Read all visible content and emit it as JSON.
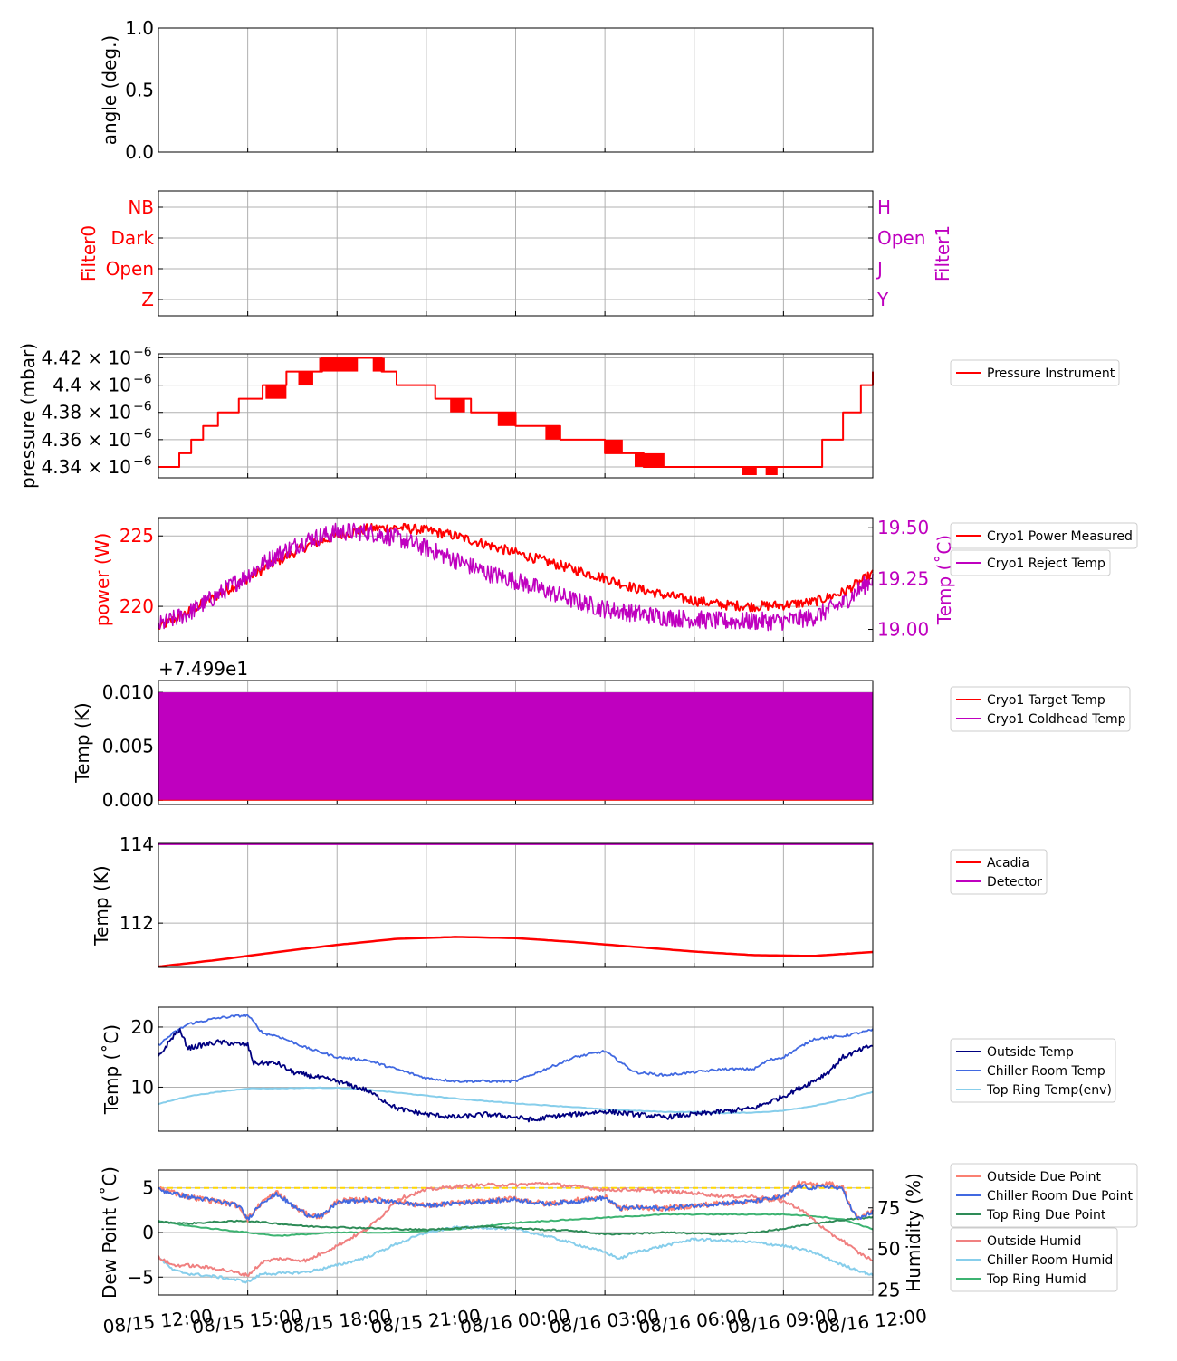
{
  "colors": {
    "red": "#ff0000",
    "magenta": "#bf00bf",
    "navy": "#000080",
    "royalblue": "#4169e1",
    "skyblue": "#87ceeb",
    "seagreen": "#2e8b57",
    "salmon": "#fa8072",
    "lightcoral": "#f08080",
    "mediumseagreen": "#3cb371",
    "gold": "#ffd700",
    "grid": "#b0b0b0"
  },
  "x_ticks": [
    "08/15 12:00",
    "08/15 15:00",
    "08/15 18:00",
    "08/15 21:00",
    "08/16 00:00",
    "08/16 03:00",
    "08/16 06:00",
    "08/16 09:00",
    "08/16 12:00"
  ],
  "x_range": [
    "08/15 12:00",
    "08/16 12:00"
  ],
  "chart_data": [
    {
      "type": "line",
      "panel": "angle",
      "ylabel": "angle (deg.)",
      "ylim": [
        0,
        1
      ],
      "yticks": [
        "0.0",
        "0.5",
        "1.0"
      ],
      "grid": true,
      "series": []
    },
    {
      "type": "line",
      "panel": "filters",
      "ylabel": "Filter0",
      "ylabel_right": "Filter1",
      "yticks_left": [
        "Z",
        "Open",
        "Dark",
        "NB"
      ],
      "yticks_right": [
        "Y",
        "J",
        "Open",
        "H"
      ],
      "grid": true,
      "series": []
    },
    {
      "type": "line",
      "panel": "pressure",
      "ylabel": "pressure (mbar)",
      "ylim": [
        4.332e-06,
        4.423e-06
      ],
      "yticks": [
        {
          "mant": "4.34",
          "exp": "−6"
        },
        {
          "mant": "4.36",
          "exp": "−6"
        },
        {
          "mant": "4.38",
          "exp": "−6"
        },
        {
          "mant": "4.4",
          "exp": "−6"
        },
        {
          "mant": "4.42",
          "exp": "−6"
        }
      ],
      "legend": [
        "Pressure Instrument"
      ],
      "legend_position": "outside-right",
      "grid": true,
      "series": [
        {
          "name": "Pressure Instrument",
          "x_hours": [
            0,
            0.7,
            1.1,
            1.5,
            2.0,
            2.7,
            3.5,
            4.3,
            5.5,
            6.7,
            7.5,
            8.0,
            9.3,
            10.5,
            12,
            13.5,
            15,
            16.3,
            18,
            19.5,
            21.3,
            22.3,
            23,
            23.6,
            24
          ],
          "values": [
            4.34e-06,
            4.35e-06,
            4.36e-06,
            4.37e-06,
            4.38e-06,
            4.39e-06,
            4.4e-06,
            4.41e-06,
            4.42e-06,
            4.42e-06,
            4.41e-06,
            4.4e-06,
            4.39e-06,
            4.38e-06,
            4.37e-06,
            4.36e-06,
            4.35e-06,
            4.34e-06,
            4.34e-06,
            4.34e-06,
            4.34e-06,
            4.36e-06,
            4.38e-06,
            4.4e-06,
            4.41e-06
          ]
        }
      ]
    },
    {
      "type": "line",
      "panel": "cryo-power",
      "ylabel": "power (W)",
      "ylabel_right": "Temp (˚C)",
      "ylim": [
        217.5,
        226.3
      ],
      "ylim_right": [
        18.94,
        19.55
      ],
      "yticks": [
        "220",
        "225"
      ],
      "yticks_right": [
        "19.00",
        "19.25",
        "19.50"
      ],
      "legend": [
        "Cryo1 Power Measured",
        "Cryo1 Reject Temp"
      ],
      "legend_position": "outside-right",
      "grid": true,
      "series": [
        {
          "name": "Cryo1 Power Measured",
          "axis": "left",
          "x_hours": [
            0,
            1,
            2,
            3,
            4,
            5,
            6,
            7,
            8,
            9,
            10,
            11,
            12,
            13,
            14,
            15,
            16,
            17,
            18,
            19,
            20,
            21,
            22,
            23,
            24
          ],
          "values": [
            218.5,
            219.6,
            220.8,
            222.0,
            223.2,
            224.3,
            225.0,
            225.5,
            225.6,
            225.4,
            225.0,
            224.4,
            223.8,
            223.2,
            222.6,
            222.0,
            221.3,
            220.8,
            220.4,
            220.1,
            220.0,
            220.1,
            220.3,
            221.0,
            222.3
          ]
        },
        {
          "name": "Cryo1 Reject Temp",
          "axis": "right",
          "x_hours": [
            0,
            1,
            2,
            3,
            4,
            5,
            6,
            7,
            8,
            9,
            10,
            11,
            12,
            13,
            14,
            15,
            16,
            17,
            18,
            19,
            20,
            21,
            22,
            23,
            24
          ],
          "values": [
            19.02,
            19.08,
            19.17,
            19.27,
            19.37,
            19.44,
            19.48,
            19.48,
            19.45,
            19.4,
            19.34,
            19.28,
            19.24,
            19.19,
            19.14,
            19.1,
            19.08,
            19.06,
            19.05,
            19.04,
            19.04,
            19.04,
            19.06,
            19.13,
            19.25
          ]
        }
      ]
    },
    {
      "type": "line",
      "panel": "cryo-coldhead",
      "ylabel": "Temp (K)",
      "offset_text": "+7.499e1",
      "ylim": [
        -0.0004,
        0.0111
      ],
      "yticks": [
        "0.000",
        "0.005",
        "0.010"
      ],
      "legend": [
        "Cryo1 Target Temp",
        "Cryo1 Coldhead Temp"
      ],
      "legend_position": "outside-right",
      "grid": true,
      "series": [
        {
          "name": "Cryo1 Target Temp",
          "x_hours": [
            0,
            24
          ],
          "values": [
            0.0,
            0.0
          ]
        },
        {
          "name": "Cryo1 Coldhead Temp",
          "x_hours": [
            0,
            24
          ],
          "values_min": [
            0.0,
            0.0
          ],
          "values_max": [
            0.01,
            0.01
          ]
        }
      ]
    },
    {
      "type": "line",
      "panel": "detector",
      "ylabel": "Temp (K)",
      "ylim": [
        110.88,
        114.02
      ],
      "yticks": [
        "112",
        "114"
      ],
      "legend": [
        "Acadia",
        "Detector"
      ],
      "legend_position": "outside-right",
      "grid": true,
      "series": [
        {
          "name": "Acadia",
          "x_hours": [
            0,
            2,
            4,
            6,
            8,
            10,
            12,
            14,
            16,
            18,
            20,
            22,
            24
          ],
          "values": [
            110.9,
            111.07,
            111.27,
            111.45,
            111.6,
            111.65,
            111.62,
            111.52,
            111.4,
            111.28,
            111.19,
            111.17,
            111.27
          ]
        },
        {
          "name": "Detector",
          "x_hours": [
            0,
            24
          ],
          "values": [
            114.0,
            114.0
          ]
        }
      ]
    },
    {
      "type": "line",
      "panel": "weather-temp",
      "ylabel": "Temp (˚C)",
      "ylim": [
        2.7,
        23.3
      ],
      "yticks": [
        "10",
        "20"
      ],
      "legend": [
        "Outside Temp",
        "Chiller Room Temp",
        "Top Ring Temp(env)"
      ],
      "legend_position": "outside-right",
      "grid": true,
      "series": [
        {
          "name": "Outside Temp",
          "x_hours": [
            0,
            0.5,
            0.7,
            1,
            1.5,
            2,
            3,
            3.2,
            4,
            4.5,
            5,
            6,
            7,
            8,
            8.5,
            9,
            10,
            11,
            12,
            12.7,
            13,
            14,
            15,
            16,
            17,
            18,
            19,
            20,
            21,
            22,
            22.5,
            23,
            23.5,
            24
          ],
          "values": [
            15,
            18.5,
            19.5,
            16.5,
            17,
            17.5,
            17,
            14,
            14,
            12.5,
            12,
            11,
            9.5,
            6.5,
            6,
            5.5,
            5,
            5.5,
            5,
            4.5,
            5,
            5.5,
            6,
            5.5,
            5,
            5.5,
            6,
            6.5,
            8.5,
            11,
            12.5,
            15,
            16,
            17
          ]
        },
        {
          "name": "Chiller Room Temp",
          "x_hours": [
            0,
            0.5,
            1,
            2,
            3,
            3.5,
            4,
            5,
            6,
            7,
            8,
            9,
            10,
            11,
            12,
            13,
            14,
            15,
            16,
            17,
            18,
            19,
            20,
            20.5,
            21,
            22,
            23,
            24
          ],
          "values": [
            17,
            19,
            20.5,
            21.5,
            22,
            19,
            18.5,
            16.5,
            15,
            14.5,
            13,
            11.5,
            11,
            11,
            11,
            13,
            15,
            16,
            12.5,
            12,
            12.5,
            13,
            13,
            14.5,
            15,
            18,
            18.5,
            19.5
          ]
        },
        {
          "name": "Top Ring Temp(env)",
          "x_hours": [
            0,
            1,
            2,
            3,
            4,
            5,
            6,
            7,
            8,
            9,
            10,
            11,
            12,
            13,
            14,
            15,
            16,
            17,
            18,
            19,
            20,
            21,
            22,
            23,
            24
          ],
          "values": [
            7.2,
            8.5,
            9.2,
            9.8,
            9.8,
            9.9,
            9.9,
            9.6,
            9.1,
            8.6,
            8.1,
            7.7,
            7.3,
            7.0,
            6.7,
            6.3,
            6.1,
            5.9,
            5.9,
            5.7,
            5.8,
            6.1,
            6.9,
            7.9,
            9.2
          ]
        }
      ]
    },
    {
      "type": "line",
      "panel": "dew-humidity",
      "ylabel": "Dew Point (˚C)",
      "ylabel_right": "Humidity (%)",
      "ylim": [
        -7,
        7
      ],
      "ylim_right": [
        22,
        98
      ],
      "yticks": [
        "−5",
        "0",
        "5"
      ],
      "yticks_right": [
        "25",
        "50",
        "75"
      ],
      "reference_line": {
        "value": 5,
        "color": "gold"
      },
      "legend": [
        "Outside Due Point",
        "Chiller Room Due Point",
        "Top Ring Due Point"
      ],
      "legend_right_axis": [
        "Outside Humid",
        "Chiller Room Humid",
        "Top Ring Humid"
      ],
      "legend_position": "outside-right",
      "grid": true,
      "series": [
        {
          "name": "Outside Due Point",
          "axis": "left",
          "x_hours": [
            0,
            1,
            2,
            2.7,
            3,
            3.5,
            4,
            4.5,
            5,
            5.5,
            6,
            7,
            8,
            9,
            10,
            11,
            12,
            13,
            14,
            15,
            15.5,
            16,
            17,
            18,
            19,
            20,
            21,
            21.5,
            22,
            22.5,
            23,
            23.3,
            23.5,
            24
          ],
          "values": [
            5,
            4,
            3.5,
            3,
            1.5,
            3.5,
            4.5,
            3,
            2,
            1.8,
            3.5,
            3.7,
            3.5,
            3.0,
            3.3,
            3.5,
            3.8,
            3.2,
            3.6,
            4.0,
            2.7,
            2.8,
            2.7,
            3.0,
            3.3,
            3.5,
            4.0,
            5.5,
            5.3,
            5.5,
            5.0,
            2.5,
            1.5,
            2.5
          ]
        },
        {
          "name": "Chiller Room Due Point",
          "axis": "left",
          "x_hours": [
            0,
            1,
            2,
            2.7,
            3,
            3.5,
            4,
            4.5,
            5,
            5.5,
            6,
            7,
            8,
            9,
            10,
            11,
            12,
            13,
            14,
            15,
            15.5,
            16,
            17,
            18,
            19,
            20,
            21,
            21.5,
            22,
            22.5,
            23,
            23.3,
            23.5,
            24
          ],
          "values": [
            4.8,
            4.0,
            3.5,
            3.0,
            1.5,
            3.5,
            4.3,
            3.0,
            2.0,
            1.8,
            3.4,
            3.6,
            3.4,
            3.0,
            3.3,
            3.5,
            3.7,
            3.2,
            3.5,
            3.9,
            2.7,
            2.8,
            2.7,
            3.0,
            3.3,
            3.5,
            4.0,
            5.2,
            5.0,
            5.2,
            4.8,
            2.5,
            1.5,
            2.3
          ]
        },
        {
          "name": "Top Ring Due Point",
          "axis": "left",
          "x_hours": [
            0,
            1,
            2,
            3,
            4,
            5,
            6,
            7,
            8,
            9,
            10,
            11,
            12,
            13,
            14,
            15,
            16,
            17,
            18,
            19,
            20,
            21,
            22,
            23,
            24
          ],
          "values": [
            1.2,
            1.0,
            1.2,
            1.3,
            1.0,
            0.7,
            0.6,
            0.5,
            0.4,
            0.3,
            0.5,
            0.7,
            0.5,
            0.3,
            0.2,
            -0.2,
            -0.1,
            0.0,
            -0.1,
            -0.2,
            0.0,
            0.4,
            1.0,
            1.4,
            1.7
          ]
        },
        {
          "name": "Outside Humid",
          "axis": "right",
          "x_hours": [
            0,
            0.5,
            1,
            2,
            3,
            3.5,
            4,
            5,
            6,
            7,
            7.5,
            8,
            9,
            10,
            11,
            12,
            13,
            14,
            15,
            16,
            17,
            18,
            19,
            20,
            21,
            21.5,
            22,
            22.5,
            23,
            23.5,
            24
          ],
          "values": [
            45,
            40,
            40,
            38,
            34,
            42,
            44,
            43,
            52,
            62,
            70,
            80,
            86,
            88,
            89,
            89,
            90,
            88,
            86,
            86,
            85,
            84,
            82,
            82,
            79,
            75,
            68,
            60,
            55,
            48,
            43
          ]
        },
        {
          "name": "Chiller Room Humid",
          "axis": "right",
          "x_hours": [
            0,
            0.5,
            1,
            2,
            3,
            3.5,
            4,
            5,
            6,
            7,
            8,
            9,
            10,
            11,
            12,
            13,
            14,
            15,
            15.5,
            16,
            17,
            18,
            19,
            20,
            21,
            22,
            23,
            24
          ],
          "values": [
            45,
            37,
            35,
            33,
            30,
            35,
            35,
            36,
            40,
            45,
            53,
            60,
            63,
            63,
            62,
            58,
            53,
            48,
            44,
            48,
            52,
            56,
            55,
            54,
            52,
            48,
            40,
            34
          ]
        },
        {
          "name": "Top Ring Humid",
          "axis": "right",
          "x_hours": [
            0,
            1,
            2,
            3,
            4,
            5,
            6,
            7,
            8,
            9,
            10,
            11,
            12,
            13,
            14,
            15,
            16,
            17,
            18,
            19,
            20,
            21,
            22,
            23,
            24
          ],
          "values": [
            67,
            64,
            62,
            60,
            58,
            59,
            60,
            60,
            60,
            61,
            62,
            64,
            66,
            67,
            68,
            69,
            70,
            71,
            71,
            71,
            71,
            71,
            70,
            68,
            62
          ]
        }
      ]
    }
  ]
}
